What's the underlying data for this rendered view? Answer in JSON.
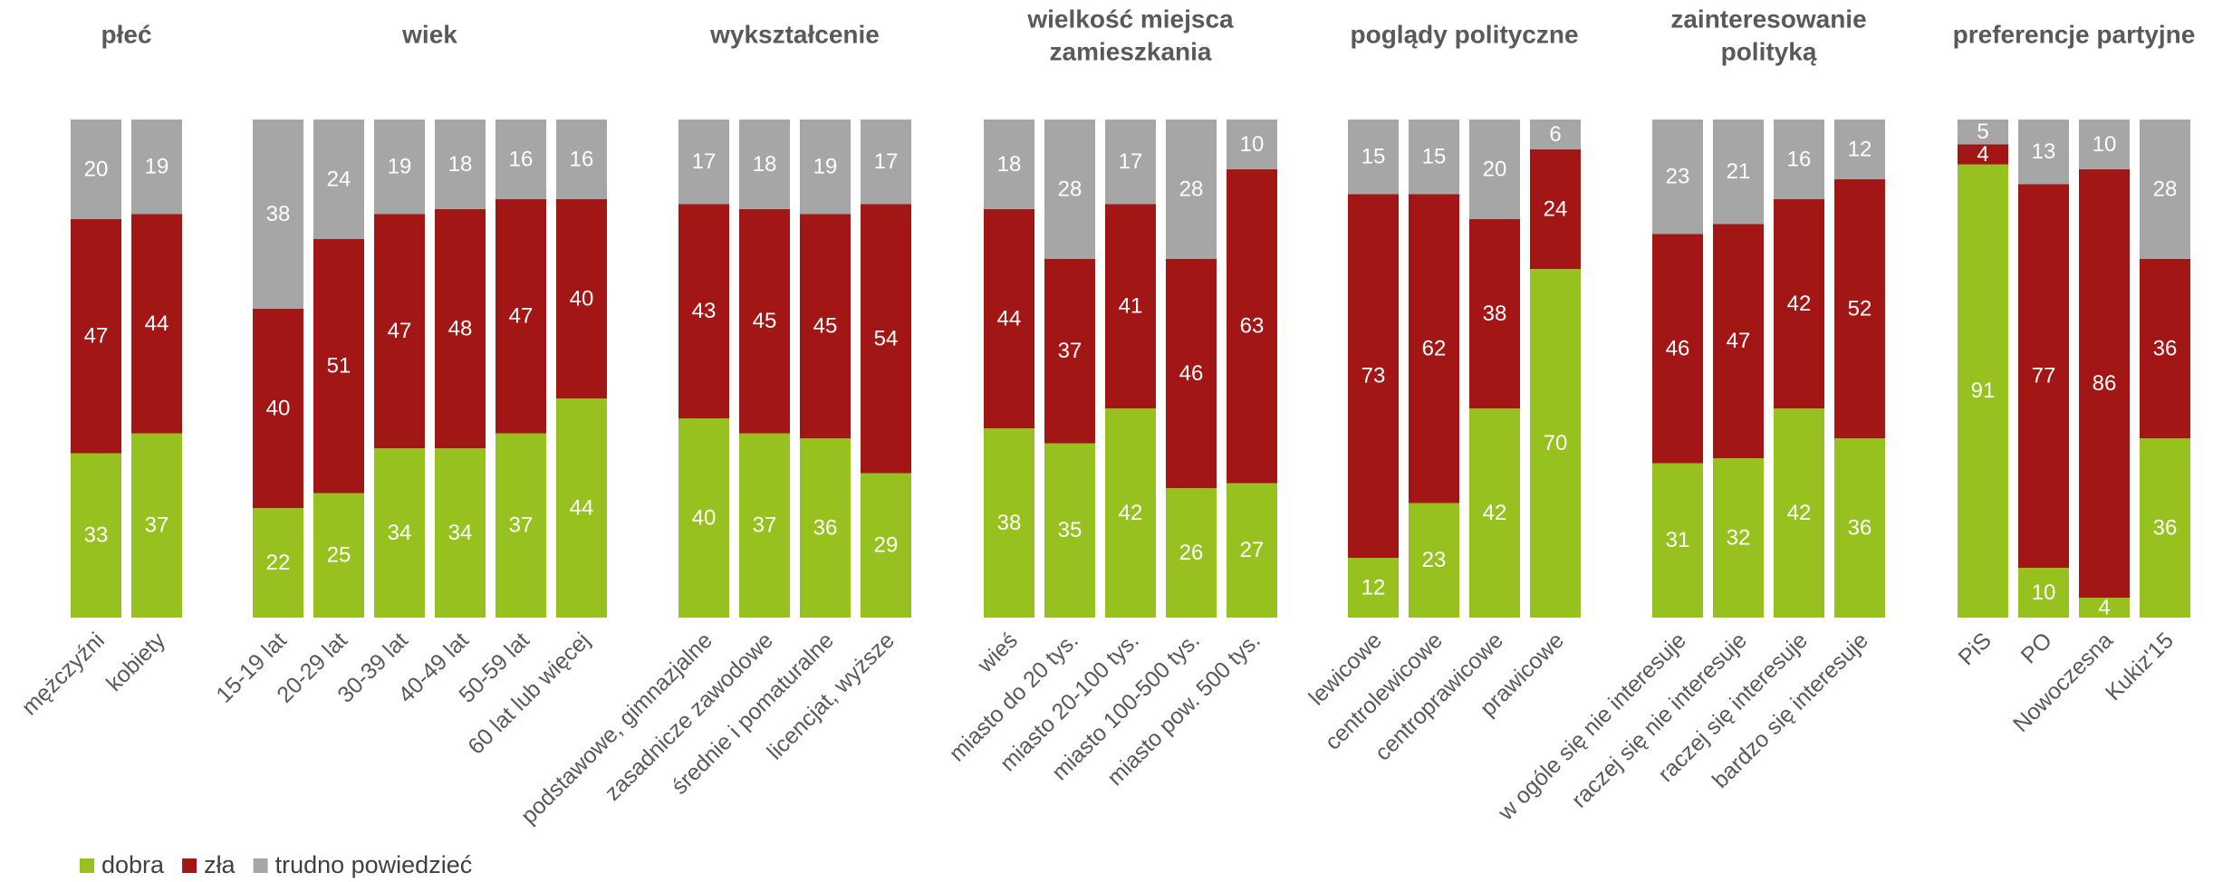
{
  "chart_data": [
    {
      "type": "stacked_bar",
      "title": [
        "płeć"
      ],
      "ylim": [
        0,
        100
      ],
      "categories": [
        "mężczyźni",
        "kobiety"
      ],
      "series": [
        {
          "name": "dobra",
          "color": "#97c11f",
          "values": [
            33,
            37
          ]
        },
        {
          "name": "zła",
          "color": "#a31616",
          "values": [
            47,
            44
          ]
        },
        {
          "name": "trudno powiedzieć",
          "color": "#a6a6a6",
          "values": [
            20,
            19
          ]
        }
      ]
    },
    {
      "type": "stacked_bar",
      "title": [
        "wiek"
      ],
      "ylim": [
        0,
        100
      ],
      "categories": [
        "15-19 lat",
        "20-29 lat",
        "30-39 lat",
        "40-49 lat",
        "50-59 lat",
        "60 lat lub więcej"
      ],
      "series": [
        {
          "name": "dobra",
          "color": "#97c11f",
          "values": [
            22,
            25,
            34,
            34,
            37,
            44
          ]
        },
        {
          "name": "zła",
          "color": "#a31616",
          "values": [
            40,
            51,
            47,
            48,
            47,
            40
          ]
        },
        {
          "name": "trudno powiedzieć",
          "color": "#a6a6a6",
          "values": [
            38,
            24,
            19,
            18,
            16,
            16
          ]
        }
      ]
    },
    {
      "type": "stacked_bar",
      "title": [
        "wykształcenie"
      ],
      "ylim": [
        0,
        100
      ],
      "categories": [
        "podstawowe, gimnazjalne",
        "zasadnicze zawodowe",
        "średnie i pomaturalne",
        "licencjat, wyższe"
      ],
      "series": [
        {
          "name": "dobra",
          "color": "#97c11f",
          "values": [
            40,
            37,
            36,
            29
          ]
        },
        {
          "name": "zła",
          "color": "#a31616",
          "values": [
            43,
            45,
            45,
            54
          ]
        },
        {
          "name": "trudno powiedzieć",
          "color": "#a6a6a6",
          "values": [
            17,
            18,
            19,
            17
          ]
        }
      ]
    },
    {
      "type": "stacked_bar",
      "title": [
        "wielkość miejsca",
        "zamieszkania"
      ],
      "ylim": [
        0,
        100
      ],
      "categories": [
        "wieś",
        "miasto do 20 tys.",
        "miasto 20-100 tys.",
        "miasto 100-500 tys.",
        "miasto pow. 500 tys."
      ],
      "series": [
        {
          "name": "dobra",
          "color": "#97c11f",
          "values": [
            38,
            35,
            42,
            26,
            27
          ]
        },
        {
          "name": "zła",
          "color": "#a31616",
          "values": [
            44,
            37,
            41,
            46,
            63
          ]
        },
        {
          "name": "trudno powiedzieć",
          "color": "#a6a6a6",
          "values": [
            18,
            28,
            17,
            28,
            10
          ]
        }
      ]
    },
    {
      "type": "stacked_bar",
      "title": [
        "poglądy polityczne"
      ],
      "ylim": [
        0,
        100
      ],
      "categories": [
        "lewicowe",
        "centrolewicowe",
        "centroprawicowe",
        "prawicowe"
      ],
      "series": [
        {
          "name": "dobra",
          "color": "#97c11f",
          "values": [
            12,
            23,
            42,
            70
          ]
        },
        {
          "name": "zła",
          "color": "#a31616",
          "values": [
            73,
            62,
            38,
            24
          ]
        },
        {
          "name": "trudno powiedzieć",
          "color": "#a6a6a6",
          "values": [
            15,
            15,
            20,
            6
          ]
        }
      ]
    },
    {
      "type": "stacked_bar",
      "title": [
        "zainteresowanie",
        "polityką"
      ],
      "ylim": [
        0,
        100
      ],
      "categories": [
        "w ogóle się nie interesuje",
        "raczej się nie interesuje",
        "raczej się interesuje",
        "bardzo się interesuje"
      ],
      "series": [
        {
          "name": "dobra",
          "color": "#97c11f",
          "values": [
            31,
            32,
            42,
            36
          ]
        },
        {
          "name": "zła",
          "color": "#a31616",
          "values": [
            46,
            47,
            42,
            52
          ]
        },
        {
          "name": "trudno powiedzieć",
          "color": "#a6a6a6",
          "values": [
            23,
            21,
            16,
            12
          ]
        }
      ]
    },
    {
      "type": "stacked_bar",
      "title": [
        "preferencje partyjne"
      ],
      "ylim": [
        0,
        100
      ],
      "categories": [
        "PiS",
        "PO",
        "Nowoczesna",
        "Kukiz'15"
      ],
      "series": [
        {
          "name": "dobra",
          "color": "#97c11f",
          "values": [
            91,
            10,
            4,
            36
          ]
        },
        {
          "name": "zła",
          "color": "#a31616",
          "values": [
            4,
            77,
            86,
            36
          ]
        },
        {
          "name": "trudno powiedzieć",
          "color": "#a6a6a6",
          "values": [
            5,
            13,
            10,
            28
          ]
        }
      ]
    }
  ]
}
